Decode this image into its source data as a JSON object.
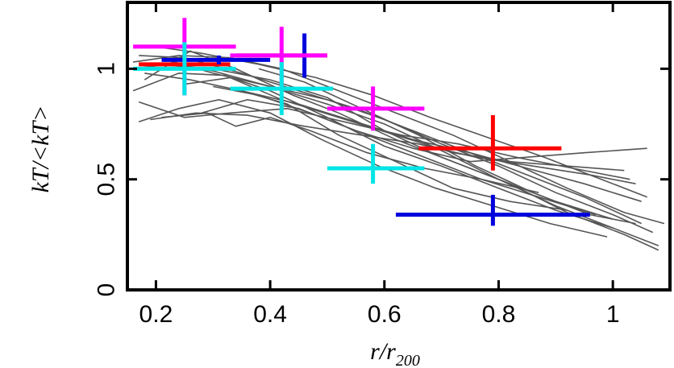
{
  "chart_data": {
    "type": "line",
    "title": "",
    "xlabel": "r/r",
    "xlabel_subscript": "200",
    "ylabel": "kT/<kT>",
    "xlim": [
      0.15,
      1.1
    ],
    "ylim": [
      0,
      1.3
    ],
    "xticks": [
      0.2,
      0.4,
      0.6,
      0.8,
      1.0
    ],
    "xtick_labels": [
      "0.2",
      "0.4",
      "0.6",
      "0.8",
      "1"
    ],
    "yticks": [
      0,
      0.5,
      1.0
    ],
    "ytick_labels": [
      "0",
      "0.5",
      "1"
    ],
    "grid": false,
    "legend": "none",
    "profile_color": "#555555",
    "profiles": [
      {
        "x": [
          0.17,
          0.25,
          0.35,
          0.45,
          0.55,
          0.65,
          0.75,
          0.85,
          0.95,
          1.05
        ],
        "y": [
          1.06,
          1.05,
          0.98,
          0.9,
          0.82,
          0.72,
          0.62,
          0.52,
          0.42,
          0.3
        ]
      },
      {
        "x": [
          0.16,
          0.22,
          0.3,
          0.4,
          0.5,
          0.6,
          0.7,
          0.8,
          0.9,
          1.0,
          1.08
        ],
        "y": [
          1.0,
          1.02,
          0.99,
          0.92,
          0.84,
          0.75,
          0.63,
          0.5,
          0.38,
          0.28,
          0.2
        ]
      },
      {
        "x": [
          0.18,
          0.26,
          0.34,
          0.44,
          0.52,
          0.62,
          0.72,
          0.82,
          0.92,
          1.02,
          1.08
        ],
        "y": [
          0.95,
          1.08,
          1.0,
          0.88,
          0.8,
          0.68,
          0.58,
          0.48,
          0.35,
          0.25,
          0.18
        ]
      },
      {
        "x": [
          0.2,
          0.28,
          0.38,
          0.48,
          0.58,
          0.68,
          0.78,
          0.88,
          0.98,
          1.06
        ],
        "y": [
          1.1,
          1.07,
          1.02,
          0.96,
          0.88,
          0.78,
          0.69,
          0.6,
          0.5,
          0.42
        ]
      },
      {
        "x": [
          0.16,
          0.24,
          0.32,
          0.4,
          0.5,
          0.6,
          0.7,
          0.8,
          0.9,
          1.0
        ],
        "y": [
          0.9,
          0.98,
          0.97,
          0.9,
          0.78,
          0.65,
          0.56,
          0.46,
          0.36,
          0.28
        ]
      },
      {
        "x": [
          0.17,
          0.25,
          0.33,
          0.43,
          0.53,
          0.63,
          0.73,
          0.83,
          0.93,
          1.03
        ],
        "y": [
          0.85,
          0.78,
          0.8,
          0.82,
          0.76,
          0.7,
          0.66,
          0.6,
          0.55,
          0.5
        ]
      },
      {
        "x": [
          0.19,
          0.27,
          0.36,
          0.46,
          0.56,
          0.66,
          0.76,
          0.86,
          0.96,
          1.04
        ],
        "y": [
          0.77,
          0.8,
          0.79,
          0.74,
          0.7,
          0.66,
          0.6,
          0.56,
          0.52,
          0.48
        ]
      },
      {
        "x": [
          0.21,
          0.29,
          0.34,
          0.4,
          0.47,
          0.57,
          0.67,
          0.77,
          0.87
        ],
        "y": [
          0.78,
          0.8,
          0.74,
          0.78,
          0.72,
          0.62,
          0.55,
          0.5,
          0.44
        ]
      },
      {
        "x": [
          0.16,
          0.24,
          0.33,
          0.42,
          0.52,
          0.62,
          0.72,
          0.82,
          0.92,
          1.02,
          1.09
        ],
        "y": [
          1.03,
          1.06,
          1.05,
          1.0,
          0.9,
          0.8,
          0.7,
          0.58,
          0.46,
          0.35,
          0.3
        ]
      },
      {
        "x": [
          0.22,
          0.3,
          0.4,
          0.5,
          0.6,
          0.7,
          0.8,
          0.9,
          1.0,
          1.07
        ],
        "y": [
          1.04,
          0.98,
          0.92,
          0.86,
          0.77,
          0.66,
          0.56,
          0.44,
          0.34,
          0.26
        ]
      },
      {
        "x": [
          0.18,
          0.26,
          0.35,
          0.45,
          0.55,
          0.65,
          0.75,
          0.85,
          0.95,
          1.05
        ],
        "y": [
          0.98,
          0.95,
          0.9,
          0.84,
          0.76,
          0.68,
          0.62,
          0.55,
          0.48,
          0.4
        ]
      },
      {
        "x": [
          0.2,
          0.3,
          0.4,
          0.5,
          0.6,
          0.7,
          0.8,
          0.9,
          1.0
        ],
        "y": [
          1.02,
          1.0,
          0.95,
          0.87,
          0.72,
          0.6,
          0.5,
          0.4,
          0.32
        ]
      },
      {
        "x": [
          0.25,
          0.33,
          0.42,
          0.52,
          0.62,
          0.72,
          0.82,
          0.92,
          1.02
        ],
        "y": [
          0.93,
          0.96,
          0.86,
          0.78,
          0.7,
          0.62,
          0.58,
          0.56,
          0.54
        ]
      },
      {
        "x": [
          0.28,
          0.36,
          0.45,
          0.55,
          0.65,
          0.75,
          0.85,
          0.95,
          1.06
        ],
        "y": [
          0.8,
          0.86,
          0.82,
          0.72,
          0.64,
          0.58,
          0.6,
          0.62,
          0.64
        ]
      },
      {
        "x": [
          0.3,
          0.38,
          0.47,
          0.57,
          0.67,
          0.77,
          0.87,
          0.97
        ],
        "y": [
          0.92,
          0.88,
          0.8,
          0.7,
          0.6,
          0.5,
          0.42,
          0.34
        ]
      },
      {
        "x": [
          0.17,
          0.24,
          0.31,
          0.4,
          0.49,
          0.59,
          0.69,
          0.79,
          0.89,
          0.99
        ],
        "y": [
          0.76,
          0.82,
          0.86,
          0.8,
          0.68,
          0.56,
          0.46,
          0.38,
          0.3,
          0.24
        ]
      },
      {
        "x": [
          0.35,
          0.43,
          0.52,
          0.62,
          0.72,
          0.82,
          0.92
        ],
        "y": [
          0.9,
          0.84,
          0.7,
          0.58,
          0.46,
          0.4,
          0.36
        ]
      },
      {
        "x": [
          0.38,
          0.46,
          0.56,
          0.66,
          0.76,
          0.86,
          0.96,
          1.04
        ],
        "y": [
          1.0,
          0.94,
          0.82,
          0.7,
          0.56,
          0.44,
          0.34,
          0.3
        ]
      }
    ],
    "series": [
      {
        "name": "red",
        "color": "#ff0000",
        "points": [
          {
            "x": 0.25,
            "y": 1.02,
            "xerr": [
              0.08,
              0.08
            ],
            "yerr": [
              0.0,
              0.0
            ]
          },
          {
            "x": 0.42,
            "y": 1.06,
            "xerr": [
              0.08,
              0.08
            ],
            "yerr": [
              0.0,
              0.0
            ]
          },
          {
            "x": 0.79,
            "y": 0.64,
            "xerr": [
              0.13,
              0.12
            ],
            "yerr": [
              0.1,
              0.15
            ]
          }
        ]
      },
      {
        "name": "blue",
        "color": "#0000dd",
        "points": [
          {
            "x": 0.31,
            "y": 1.04,
            "xerr": [
              0.1,
              0.09
            ],
            "yerr": [
              0.02,
              0.02
            ]
          },
          {
            "x": 0.46,
            "y": 1.05,
            "xerr": [
              0.0,
              0.0
            ],
            "yerr": [
              0.09,
              0.11
            ]
          },
          {
            "x": 0.79,
            "y": 0.34,
            "xerr": [
              0.17,
              0.17
            ],
            "yerr": [
              0.05,
              0.09
            ]
          }
        ]
      },
      {
        "name": "magenta",
        "color": "#ff00ff",
        "points": [
          {
            "x": 0.25,
            "y": 1.1,
            "xerr": [
              0.09,
              0.09
            ],
            "yerr": [
              0.22,
              0.13
            ]
          },
          {
            "x": 0.42,
            "y": 1.06,
            "xerr": [
              0.09,
              0.08
            ],
            "yerr": [
              0.13,
              0.13
            ]
          },
          {
            "x": 0.58,
            "y": 0.82,
            "xerr": [
              0.08,
              0.09
            ],
            "yerr": [
              0.1,
              0.1
            ]
          }
        ]
      },
      {
        "name": "cyan",
        "color": "#00e5e5",
        "points": [
          {
            "x": 0.25,
            "y": 1.0,
            "xerr": [
              0.09,
              0.09
            ],
            "yerr": [
              0.12,
              0.12
            ]
          },
          {
            "x": 0.42,
            "y": 0.91,
            "xerr": [
              0.09,
              0.09
            ],
            "yerr": [
              0.12,
              0.12
            ]
          },
          {
            "x": 0.58,
            "y": 0.55,
            "xerr": [
              0.08,
              0.09
            ],
            "yerr": [
              0.07,
              0.11
            ]
          }
        ]
      }
    ]
  }
}
